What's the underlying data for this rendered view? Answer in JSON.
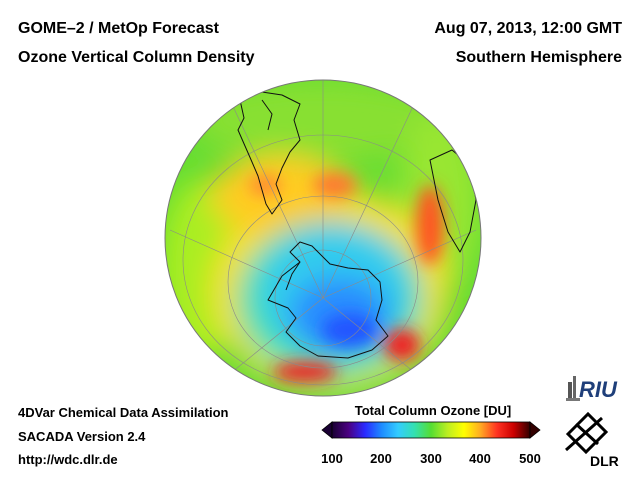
{
  "header": {
    "title_line1": "GOME–2 / MetOp Forecast",
    "title_line2": "Ozone Vertical Column Density",
    "date_line": "Aug 07, 2013, 12:00 GMT",
    "region_line": "Southern Hemisphere"
  },
  "footer": {
    "line1": "4DVar Chemical Data Assimilation",
    "line2": "SACADA Version 2.4",
    "line3": "http://wdc.dlr.de"
  },
  "colorbar": {
    "title": "Total Column Ozone [DU]",
    "ticks": [
      "100",
      "200",
      "300",
      "400",
      "500"
    ],
    "colors": [
      "#1a0033",
      "#4b0082",
      "#2a2aff",
      "#1e8bff",
      "#33ccff",
      "#33e0b0",
      "#55dd33",
      "#bbee22",
      "#ffff00",
      "#ffaa22",
      "#ff3322",
      "#cc0000",
      "#330000"
    ]
  },
  "logos": {
    "riu": "RIU",
    "dlr": "DLR"
  },
  "colors": {
    "ocean_base": "#66dd33",
    "coastline": "#111111",
    "graticule": "#8a8a8a"
  }
}
